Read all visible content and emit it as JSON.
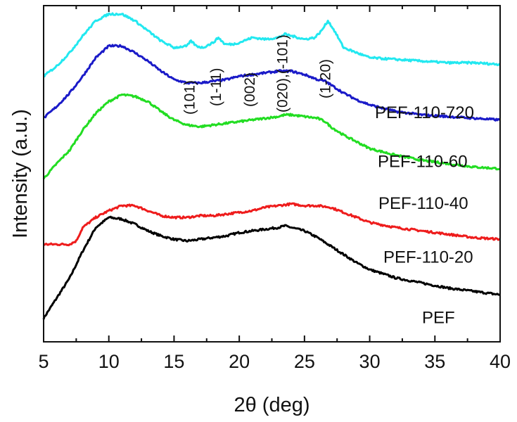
{
  "chart_data": {
    "type": "line",
    "title": "",
    "xlabel": "2θ (deg)",
    "ylabel": "Intensity (a.u.)",
    "xlim": [
      5,
      40
    ],
    "xticks": [
      "5",
      "10",
      "15",
      "20",
      "25",
      "30",
      "35",
      "40"
    ],
    "y_ticks_shown": false,
    "grid": false,
    "legend": "inline-right",
    "peak_labels": [
      {
        "text": "(101)",
        "x": 16.2
      },
      {
        "text": "(1-11)",
        "x": 18.2
      },
      {
        "text": "(002)",
        "x": 20.8
      },
      {
        "text": "(020),(-101)",
        "x": 23.3
      },
      {
        "text": "(1-20)",
        "x": 26.6
      }
    ],
    "series": [
      {
        "name": "PEF",
        "label": "PEF",
        "color": "#000000",
        "points": [
          [
            5,
            0.07
          ],
          [
            6,
            0.13
          ],
          [
            7,
            0.19
          ],
          [
            8,
            0.27
          ],
          [
            9,
            0.34
          ],
          [
            10,
            0.37
          ],
          [
            11,
            0.365
          ],
          [
            12,
            0.35
          ],
          [
            13,
            0.33
          ],
          [
            14,
            0.315
          ],
          [
            15,
            0.305
          ],
          [
            16,
            0.3
          ],
          [
            17,
            0.305
          ],
          [
            18,
            0.31
          ],
          [
            19,
            0.315
          ],
          [
            20,
            0.325
          ],
          [
            21,
            0.33
          ],
          [
            22,
            0.335
          ],
          [
            23,
            0.34
          ],
          [
            23.5,
            0.345
          ],
          [
            24,
            0.34
          ],
          [
            25,
            0.33
          ],
          [
            26,
            0.31
          ],
          [
            27,
            0.285
          ],
          [
            28,
            0.26
          ],
          [
            29,
            0.235
          ],
          [
            30,
            0.215
          ],
          [
            32,
            0.19
          ],
          [
            34,
            0.175
          ],
          [
            36,
            0.16
          ],
          [
            38,
            0.15
          ],
          [
            40,
            0.14
          ]
        ]
      },
      {
        "name": "PEF-110-20",
        "label": "PEF-110-20",
        "color": "#ee1c1c",
        "points": [
          [
            5,
            0.29
          ],
          [
            6,
            0.29
          ],
          [
            7,
            0.29
          ],
          [
            7.5,
            0.3
          ],
          [
            8,
            0.34
          ],
          [
            9,
            0.37
          ],
          [
            10,
            0.39
          ],
          [
            11,
            0.405
          ],
          [
            12,
            0.405
          ],
          [
            13,
            0.39
          ],
          [
            14,
            0.375
          ],
          [
            15,
            0.37
          ],
          [
            16,
            0.37
          ],
          [
            17,
            0.375
          ],
          [
            18,
            0.375
          ],
          [
            19,
            0.38
          ],
          [
            20,
            0.385
          ],
          [
            21,
            0.39
          ],
          [
            22,
            0.4
          ],
          [
            23,
            0.405
          ],
          [
            24,
            0.41
          ],
          [
            25,
            0.405
          ],
          [
            26,
            0.405
          ],
          [
            27,
            0.4
          ],
          [
            28,
            0.385
          ],
          [
            29,
            0.37
          ],
          [
            30,
            0.355
          ],
          [
            32,
            0.34
          ],
          [
            34,
            0.33
          ],
          [
            36,
            0.32
          ],
          [
            38,
            0.31
          ],
          [
            40,
            0.305
          ]
        ]
      },
      {
        "name": "PEF-110-40",
        "label": "PEF-110-40",
        "color": "#22dd22",
        "points": [
          [
            5,
            0.485
          ],
          [
            6,
            0.53
          ],
          [
            7,
            0.57
          ],
          [
            8,
            0.63
          ],
          [
            9,
            0.68
          ],
          [
            10,
            0.715
          ],
          [
            11,
            0.735
          ],
          [
            12,
            0.73
          ],
          [
            13,
            0.715
          ],
          [
            14,
            0.685
          ],
          [
            15,
            0.66
          ],
          [
            16,
            0.645
          ],
          [
            17,
            0.64
          ],
          [
            18,
            0.645
          ],
          [
            19,
            0.65
          ],
          [
            20,
            0.655
          ],
          [
            21,
            0.66
          ],
          [
            22,
            0.665
          ],
          [
            23,
            0.67
          ],
          [
            23.5,
            0.675
          ],
          [
            24,
            0.675
          ],
          [
            25,
            0.67
          ],
          [
            26,
            0.665
          ],
          [
            26.6,
            0.655
          ],
          [
            27,
            0.64
          ],
          [
            28,
            0.615
          ],
          [
            29,
            0.595
          ],
          [
            30,
            0.575
          ],
          [
            32,
            0.555
          ],
          [
            34,
            0.54
          ],
          [
            36,
            0.53
          ],
          [
            38,
            0.52
          ],
          [
            40,
            0.515
          ]
        ]
      },
      {
        "name": "PEF-110-60",
        "label": "PEF-110-60",
        "color": "#1a1ac8",
        "points": [
          [
            5,
            0.665
          ],
          [
            6,
            0.7
          ],
          [
            7,
            0.74
          ],
          [
            8,
            0.79
          ],
          [
            9,
            0.845
          ],
          [
            10,
            0.88
          ],
          [
            11,
            0.88
          ],
          [
            12,
            0.86
          ],
          [
            13,
            0.835
          ],
          [
            14,
            0.805
          ],
          [
            15,
            0.78
          ],
          [
            16,
            0.77
          ],
          [
            17,
            0.77
          ],
          [
            18,
            0.775
          ],
          [
            19,
            0.78
          ],
          [
            20,
            0.79
          ],
          [
            21,
            0.795
          ],
          [
            22,
            0.8
          ],
          [
            23,
            0.805
          ],
          [
            24,
            0.805
          ],
          [
            25,
            0.795
          ],
          [
            26,
            0.78
          ],
          [
            26.6,
            0.775
          ],
          [
            27,
            0.765
          ],
          [
            28,
            0.74
          ],
          [
            29,
            0.72
          ],
          [
            30,
            0.705
          ],
          [
            32,
            0.685
          ],
          [
            34,
            0.675
          ],
          [
            36,
            0.67
          ],
          [
            38,
            0.665
          ],
          [
            40,
            0.66
          ]
        ]
      },
      {
        "name": "PEF-110-720",
        "label": "PEF-110-720",
        "color": "#22e8f0",
        "points": [
          [
            5,
            0.79
          ],
          [
            6,
            0.82
          ],
          [
            7,
            0.86
          ],
          [
            8,
            0.91
          ],
          [
            9,
            0.955
          ],
          [
            10,
            0.975
          ],
          [
            11,
            0.975
          ],
          [
            12,
            0.955
          ],
          [
            13,
            0.925
          ],
          [
            14,
            0.895
          ],
          [
            15,
            0.875
          ],
          [
            16,
            0.88
          ],
          [
            16.3,
            0.895
          ],
          [
            16.7,
            0.88
          ],
          [
            17.2,
            0.875
          ],
          [
            18,
            0.89
          ],
          [
            18.4,
            0.905
          ],
          [
            18.9,
            0.885
          ],
          [
            19.5,
            0.885
          ],
          [
            20,
            0.89
          ],
          [
            21,
            0.905
          ],
          [
            22,
            0.9
          ],
          [
            23,
            0.905
          ],
          [
            23.5,
            0.915
          ],
          [
            24,
            0.91
          ],
          [
            25,
            0.9
          ],
          [
            25.8,
            0.905
          ],
          [
            26.3,
            0.925
          ],
          [
            26.8,
            0.955
          ],
          [
            27.3,
            0.925
          ],
          [
            28,
            0.875
          ],
          [
            29,
            0.86
          ],
          [
            30,
            0.845
          ],
          [
            32,
            0.84
          ],
          [
            34,
            0.835
          ],
          [
            36,
            0.83
          ],
          [
            38,
            0.83
          ],
          [
            40,
            0.825
          ]
        ]
      }
    ]
  }
}
